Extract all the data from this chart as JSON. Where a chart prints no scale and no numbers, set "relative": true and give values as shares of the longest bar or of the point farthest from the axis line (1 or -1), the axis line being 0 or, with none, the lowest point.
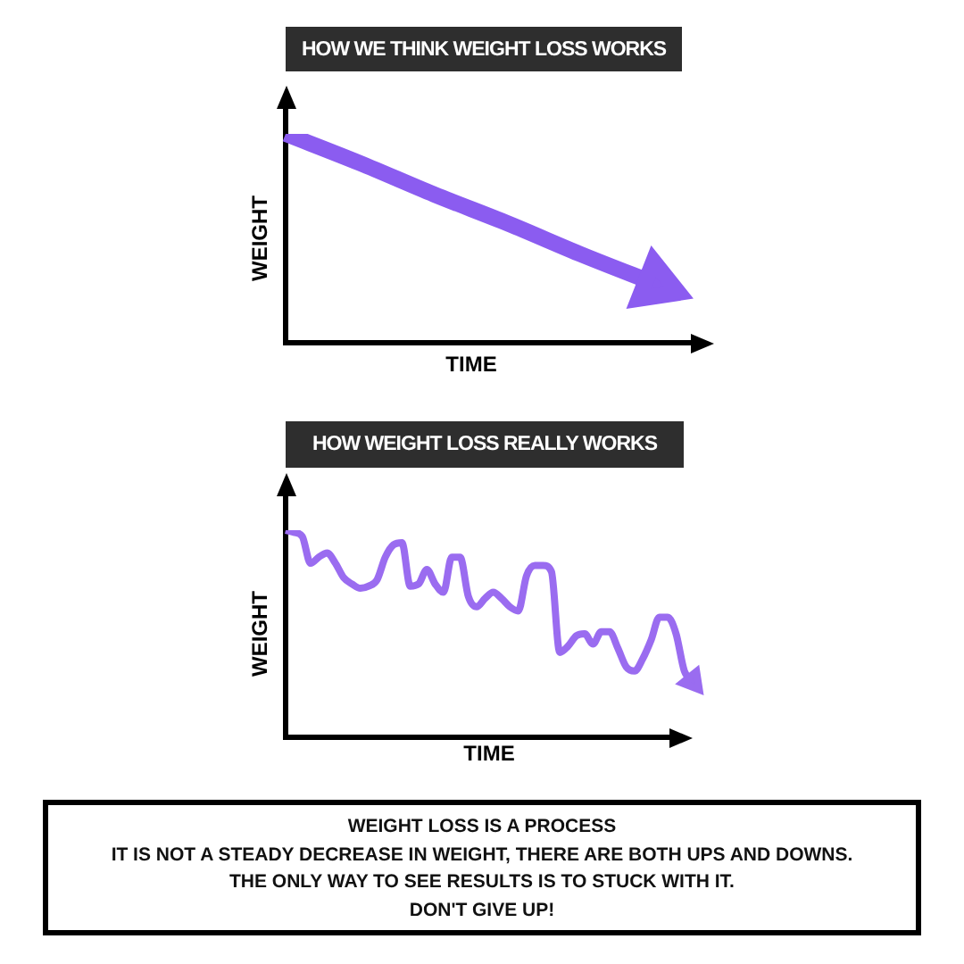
{
  "chart_data": [
    {
      "type": "line",
      "title": "HOW WE THINK WEIGHT LOSS WORKS",
      "xlabel": "TIME",
      "ylabel": "WEIGHT",
      "relative": true,
      "categories": [
        null,
        null,
        null,
        null,
        null,
        null
      ],
      "series": [
        {
          "color": "#8b5cf0",
          "values": [
            1,
            0.86,
            0.71,
            0.57,
            0.42,
            0.28
          ]
        }
      ]
    },
    {
      "type": "line",
      "title": "HOW WEIGHT LOSS REALLY WORKS",
      "xlabel": "TIME",
      "ylabel": "WEIGHT",
      "relative": true,
      "categories": [
        null,
        null,
        null,
        null,
        null,
        null,
        null,
        null,
        null,
        null,
        null,
        null,
        null,
        null,
        null,
        null,
        null,
        null,
        null,
        null,
        null,
        null,
        null,
        null,
        null,
        null,
        null,
        null,
        null,
        null,
        null,
        null,
        null,
        null,
        null,
        null,
        null,
        null,
        null,
        null,
        null,
        null,
        null,
        null,
        null,
        null,
        null,
        null,
        null,
        null
      ],
      "series": [
        {
          "color": "#9a6cf0",
          "values": [
            1,
            0.99,
            0.97,
            0.84,
            0.87,
            0.89,
            0.84,
            0.77,
            0.74,
            0.72,
            0.73,
            0.76,
            0.87,
            0.93,
            0.94,
            0.73,
            0.74,
            0.81,
            0.74,
            0.7,
            0.87,
            0.87,
            0.68,
            0.63,
            0.67,
            0.7,
            0.67,
            0.63,
            0.61,
            0.78,
            0.83,
            0.83,
            0.8,
            0.41,
            0.44,
            0.49,
            0.5,
            0.45,
            0.51,
            0.51,
            0.43,
            0.34,
            0.32,
            0.38,
            0.47,
            0.58,
            0.58,
            0.5,
            0.32,
            0.27
          ]
        }
      ]
    },
    {
      "type": "other",
      "annotations": [
        "WEIGHT LOSS IS A PROCESS",
        "IT IS NOT A STEADY DECREASE IN WEIGHT, THERE ARE BOTH UPS AND DOWNS.",
        "THE ONLY WAY TO SEE RESULTS IS TO STUCK WITH IT.",
        "DON'T GIVE UP!"
      ]
    }
  ]
}
